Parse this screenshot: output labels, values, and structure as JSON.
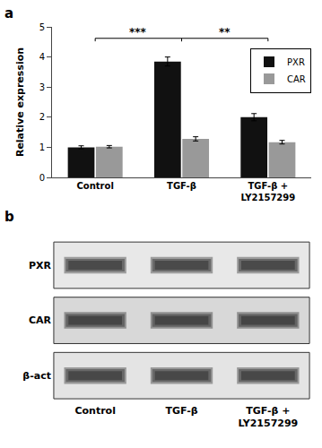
{
  "chart_data": [
    {
      "type": "bar",
      "title": "a",
      "categories": [
        "Control",
        "TGF-β",
        "TGF-β +\nLY2157299"
      ],
      "series": [
        {
          "name": "PXR",
          "color": "#111111",
          "values": [
            1.0,
            3.85,
            2.0
          ],
          "errors": [
            0.05,
            0.15,
            0.12
          ]
        },
        {
          "name": "CAR",
          "color": "#999999",
          "values": [
            1.02,
            1.28,
            1.17
          ],
          "errors": [
            0.04,
            0.07,
            0.06
          ]
        }
      ],
      "ylabel": "Relative expression",
      "ylim": [
        0,
        5
      ],
      "yticks": [
        0,
        1,
        2,
        3,
        4,
        5
      ],
      "legend": "upper right",
      "annotations": [
        {
          "text": "***",
          "from": 0,
          "to": 1,
          "y": 4.62
        },
        {
          "text": "**",
          "from": 1,
          "to": 2,
          "y": 4.62
        }
      ]
    },
    {
      "type": "blot",
      "title": "b",
      "categories": [
        "Control",
        "TGF-β",
        "TGF-β +\nLY2157299"
      ],
      "rows": [
        "PXR",
        "CAR",
        "β-act"
      ],
      "colors": [
        "#e8e8e8",
        "#d8d8d8",
        "#e4e4e4"
      ],
      "color": "#0f0f0f"
    }
  ]
}
